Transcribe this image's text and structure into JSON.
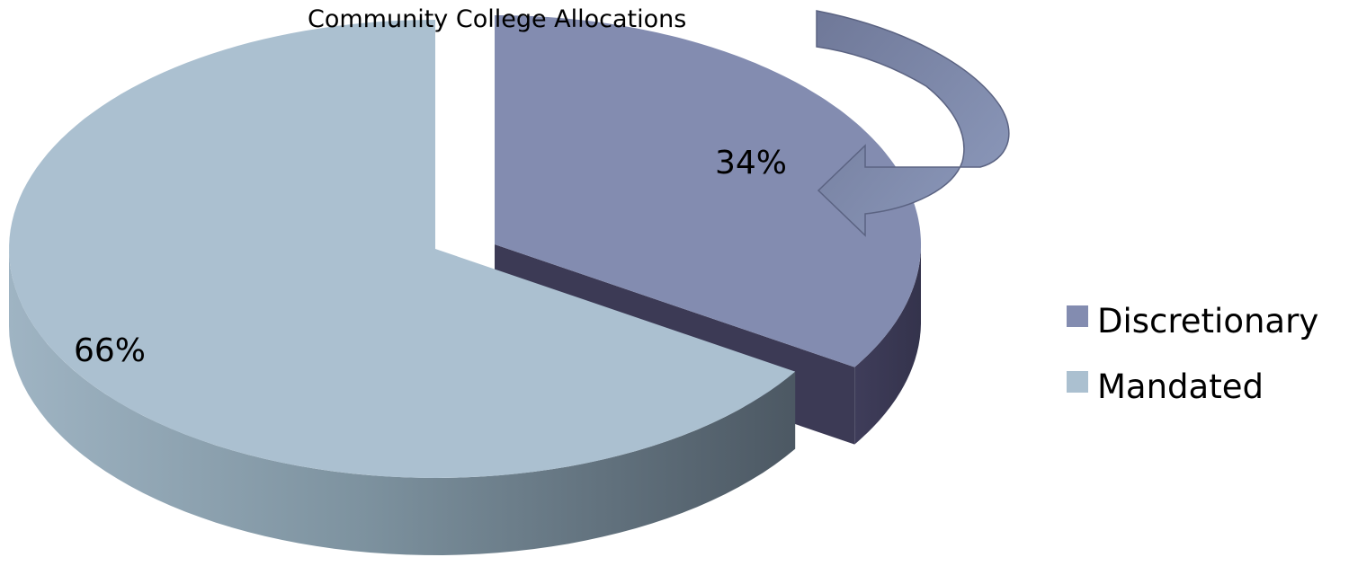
{
  "chart_data": {
    "type": "pie",
    "title": "Community College Allocations",
    "slices": [
      {
        "name": "Discretionary",
        "value": 34,
        "label": "34%",
        "color": "#838cb0",
        "side_color": "#3c3a55",
        "exploded": true
      },
      {
        "name": "Mandated",
        "value": 66,
        "label": "66%",
        "color": "#abc0d0",
        "side_color": "#7f96a6",
        "exploded": false
      }
    ],
    "legend": {
      "placement": "right",
      "entries": [
        {
          "label": "Discretionary",
          "color": "#838cb0"
        },
        {
          "label": "Mandated",
          "color": "#abc0d0"
        }
      ]
    },
    "annotation": {
      "type": "curved-arrow",
      "target": "Discretionary",
      "color": "#6b7594"
    },
    "start_angle_deg": 90,
    "direction": "clockwise",
    "style": "3d-exploded"
  }
}
